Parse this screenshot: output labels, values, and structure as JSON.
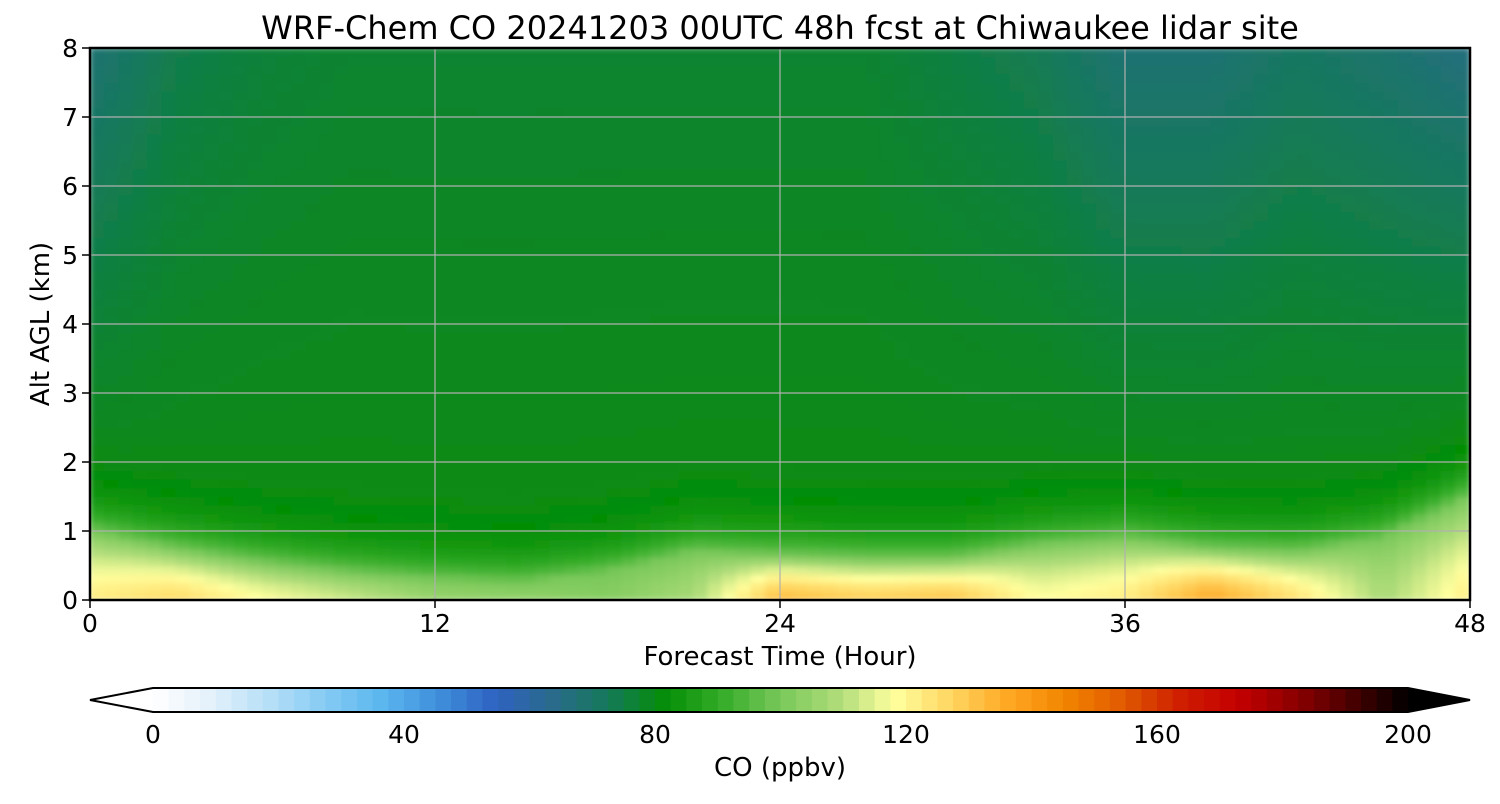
{
  "chart_data": {
    "type": "heatmap",
    "title": "WRF-Chem CO  20241203 00UTC 48h fcst at Chiwaukee lidar site",
    "xlabel": "Forecast Time (Hour)",
    "ylabel": "Alt AGL (km)",
    "xlim": [
      0,
      48
    ],
    "ylim": [
      0,
      8
    ],
    "x_ticks": [
      "0",
      "12",
      "24",
      "36",
      "48"
    ],
    "y_ticks": [
      "0",
      "1",
      "2",
      "3",
      "4",
      "5",
      "6",
      "7",
      "8"
    ],
    "grid": true,
    "colorbar": {
      "label": "CO  (ppbv)",
      "range": [
        0,
        200
      ],
      "ticks": [
        "0",
        "40",
        "80",
        "120",
        "160",
        "200"
      ],
      "extend": "both",
      "orientation": "horizontal",
      "placement": "bottom",
      "colors": [
        "#ffffff",
        "#e4f1fb",
        "#b8dff7",
        "#86cbf4",
        "#5bb7ef",
        "#3f8fdb",
        "#2f62c2",
        "#2a6a8c",
        "#147a57",
        "#058e06",
        "#36ad2a",
        "#79c85a",
        "#aedc79",
        "#ffff9e",
        "#ffd560",
        "#ffa722",
        "#f28400",
        "#e05a00",
        "#cf1e00",
        "#c50000",
        "#8e0000",
        "#4a0000",
        "#000000"
      ]
    },
    "field_description": {
      "hours": [
        0,
        3,
        6,
        9,
        12,
        15,
        18,
        21,
        24,
        27,
        30,
        33,
        36,
        39,
        42,
        45,
        48
      ],
      "boundary_layer_top_km": [
        1.0,
        0.75,
        0.55,
        0.4,
        0.3,
        0.25,
        0.4,
        0.7,
        0.65,
        0.6,
        0.6,
        0.8,
        0.9,
        0.75,
        0.7,
        0.9,
        1.5
      ],
      "surface_max_ppbv": [
        122,
        126,
        118,
        112,
        105,
        104,
        102,
        108,
        132,
        128,
        130,
        118,
        122,
        136,
        124,
        108,
        122
      ],
      "free_troposphere_top_ppbv": [
        68,
        74,
        76,
        77,
        77,
        77,
        77,
        77,
        77,
        77,
        75,
        73,
        68,
        68,
        71,
        69,
        66
      ]
    }
  }
}
